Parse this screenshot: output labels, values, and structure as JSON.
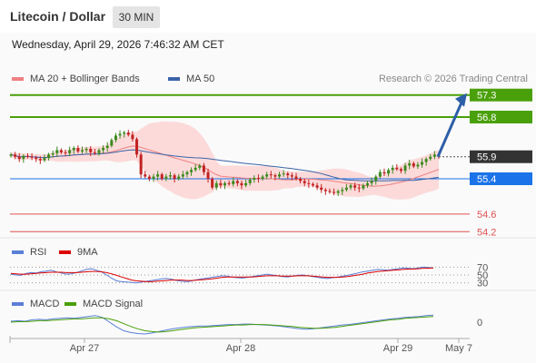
{
  "header": {
    "title": "Litecoin / Dollar",
    "interval": "30 MIN"
  },
  "timestamp": "Wednesday, April 29, 2026 7:46:32 AM CET",
  "chart_data": [
    {
      "type": "candlestick",
      "legend": [
        {
          "name": "MA 20 + Bollinger Bands",
          "color": "#f08080"
        },
        {
          "name": "MA 50",
          "color": "#3a64a8"
        }
      ],
      "credit": "Research © 2026 Trading Central",
      "x_ticks": [
        "Apr 27",
        "Apr 28",
        "Apr 29",
        "May 7"
      ],
      "ylim": [
        54.0,
        57.5
      ],
      "levels": [
        {
          "label": "57.3",
          "value": 57.3,
          "color": "#4aa00a",
          "style": "resistance"
        },
        {
          "label": "56.8",
          "value": 56.8,
          "color": "#4aa00a",
          "style": "resistance"
        },
        {
          "label": "55.9",
          "value": 55.9,
          "color": "#333333",
          "style": "last"
        },
        {
          "label": "55.4",
          "value": 55.4,
          "color": "#1a73e8",
          "style": "pivot"
        },
        {
          "label": "54.6",
          "value": 54.6,
          "color": "#e05050",
          "style": "support"
        },
        {
          "label": "54.2",
          "value": 54.2,
          "color": "#e05050",
          "style": "support"
        }
      ],
      "forecast_arrow": {
        "from": 55.9,
        "to": 57.3
      },
      "close": [
        55.95,
        55.9,
        55.85,
        55.92,
        55.9,
        55.88,
        55.85,
        55.82,
        55.87,
        55.95,
        55.98,
        56.05,
        56.0,
        55.98,
        56.05,
        56.1,
        56.02,
        56.05,
        56.08,
        56.0,
        55.98,
        56.05,
        56.1,
        56.15,
        56.28,
        56.38,
        56.42,
        56.45,
        56.4,
        56.3,
        55.95,
        55.5,
        55.45,
        55.4,
        55.45,
        55.5,
        55.4,
        55.45,
        55.48,
        55.4,
        55.45,
        55.5,
        55.55,
        55.6,
        55.65,
        55.7,
        55.55,
        55.4,
        55.2,
        55.3,
        55.25,
        55.3,
        55.28,
        55.35,
        55.3,
        55.25,
        55.3,
        55.38,
        55.42,
        55.4,
        55.45,
        55.5,
        55.48,
        55.45,
        55.5,
        55.52,
        55.48,
        55.45,
        55.4,
        55.35,
        55.3,
        55.28,
        55.25,
        55.2,
        55.15,
        55.12,
        55.1,
        55.08,
        55.12,
        55.15,
        55.2,
        55.25,
        55.2,
        55.18,
        55.25,
        55.3,
        55.35,
        55.45,
        55.55,
        55.52,
        55.6,
        55.65,
        55.62,
        55.58,
        55.7,
        55.75,
        55.68,
        55.72,
        55.78,
        55.85,
        55.9,
        55.95,
        55.92
      ]
    },
    {
      "type": "line",
      "legend": [
        {
          "name": "RSI",
          "color": "#5a7fd6"
        },
        {
          "name": "9MA",
          "color": "#dd0000"
        }
      ],
      "ylim": [
        20,
        80
      ],
      "levels": [
        70,
        50,
        30
      ],
      "level_labels": [
        "70",
        "50",
        "30"
      ],
      "series": [
        {
          "name": "RSI",
          "color": "#5a7fd6",
          "values": [
            52,
            50,
            49,
            54,
            56,
            55,
            58,
            60,
            62,
            58,
            55,
            52,
            53,
            56,
            60,
            64,
            66,
            62,
            58,
            50,
            42,
            35,
            33,
            32,
            31,
            30,
            32,
            34,
            36,
            38,
            40,
            41,
            39,
            36,
            34,
            33,
            35,
            38,
            40,
            42,
            44,
            46,
            48,
            47,
            45,
            43,
            42,
            44,
            46,
            48,
            50,
            52,
            50,
            48,
            46,
            45,
            47,
            49,
            50,
            48,
            46,
            44,
            42,
            41,
            43,
            45,
            47,
            49,
            52,
            55,
            58,
            60,
            62,
            64,
            63,
            62,
            64,
            66,
            68,
            67,
            66,
            68,
            70,
            69,
            68
          ]
        },
        {
          "name": "9MA",
          "color": "#dd0000",
          "values": [
            54,
            53,
            52,
            52,
            53,
            54,
            55,
            56,
            57,
            57,
            57,
            56,
            56,
            56,
            57,
            58,
            59,
            59,
            58,
            56,
            53,
            49,
            45,
            41,
            37,
            35,
            34,
            33,
            33,
            34,
            35,
            36,
            37,
            37,
            37,
            36,
            36,
            37,
            38,
            39,
            40,
            42,
            44,
            45,
            45,
            45,
            45,
            45,
            45,
            46,
            47,
            48,
            48,
            48,
            47,
            47,
            47,
            48,
            48,
            48,
            47,
            46,
            45,
            44,
            44,
            44,
            45,
            46,
            48,
            50,
            52,
            55,
            57,
            59,
            60,
            61,
            62,
            63,
            64,
            65,
            65,
            66,
            67,
            67,
            68
          ]
        }
      ]
    },
    {
      "type": "line",
      "legend": [
        {
          "name": "MACD",
          "color": "#5a7fd6"
        },
        {
          "name": "MACD Signal",
          "color": "#4aa00a"
        }
      ],
      "zero_label": "0",
      "series": [
        {
          "name": "MACD",
          "color": "#5a7fd6",
          "values": [
            0.02,
            0.03,
            0.02,
            0.05,
            0.06,
            0.05,
            0.07,
            0.08,
            0.09,
            0.08,
            0.1,
            0.12,
            0.14,
            0.1,
            0.0,
            -0.1,
            -0.18,
            -0.22,
            -0.24,
            -0.25,
            -0.23,
            -0.2,
            -0.17,
            -0.14,
            -0.12,
            -0.1,
            -0.09,
            -0.08,
            -0.08,
            -0.07,
            -0.06,
            -0.05,
            -0.05,
            -0.04,
            -0.04,
            -0.05,
            -0.06,
            -0.07,
            -0.08,
            -0.1,
            -0.12,
            -0.14,
            -0.15,
            -0.14,
            -0.12,
            -0.1,
            -0.08,
            -0.06,
            -0.05,
            -0.03,
            -0.01,
            0.01,
            0.03,
            0.05,
            0.07,
            0.08,
            0.1,
            0.11,
            0.12,
            0.14,
            0.15
          ]
        },
        {
          "name": "MACD Signal",
          "color": "#4aa00a",
          "values": [
            0.0,
            0.01,
            0.01,
            0.02,
            0.03,
            0.03,
            0.04,
            0.05,
            0.06,
            0.07,
            0.07,
            0.08,
            0.09,
            0.09,
            0.07,
            0.03,
            -0.03,
            -0.09,
            -0.14,
            -0.18,
            -0.2,
            -0.21,
            -0.2,
            -0.18,
            -0.16,
            -0.14,
            -0.12,
            -0.11,
            -0.1,
            -0.09,
            -0.08,
            -0.07,
            -0.06,
            -0.06,
            -0.05,
            -0.05,
            -0.05,
            -0.06,
            -0.07,
            -0.08,
            -0.09,
            -0.11,
            -0.12,
            -0.13,
            -0.13,
            -0.12,
            -0.11,
            -0.09,
            -0.07,
            -0.05,
            -0.03,
            -0.01,
            0.01,
            0.03,
            0.05,
            0.06,
            0.08,
            0.09,
            0.1,
            0.11,
            0.12
          ]
        }
      ]
    }
  ]
}
